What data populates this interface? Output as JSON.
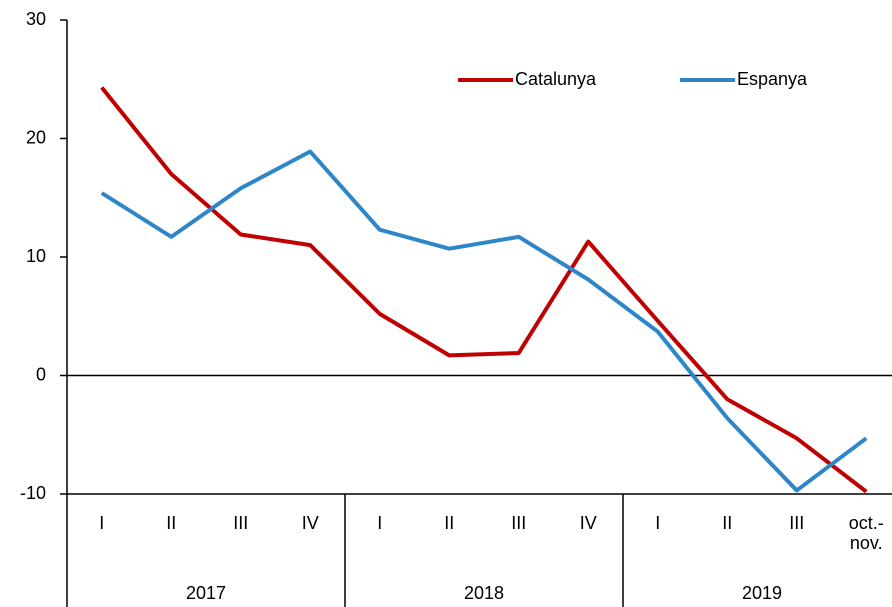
{
  "chart_data": {
    "type": "line",
    "categories": [
      "I",
      "II",
      "III",
      "IV",
      "I",
      "II",
      "III",
      "IV",
      "I",
      "II",
      "III",
      "oct.-nov."
    ],
    "years": [
      "2017",
      "2018",
      "2019"
    ],
    "series": [
      {
        "name": "Catalunya",
        "color": "#c00000",
        "values": [
          24.3,
          17.0,
          11.9,
          11.0,
          5.2,
          1.7,
          1.9,
          11.3,
          4.6,
          -2.0,
          -5.3,
          -9.8
        ]
      },
      {
        "name": "Espanya",
        "color": "#2e86c9",
        "values": [
          15.4,
          11.7,
          15.8,
          18.9,
          12.3,
          10.7,
          11.7,
          8.1,
          3.7,
          -3.6,
          -9.7,
          -5.3
        ]
      }
    ],
    "ylim": [
      -10,
      30
    ],
    "yticks": [
      -10,
      0,
      10,
      20,
      30
    ],
    "legend": "top-right"
  }
}
